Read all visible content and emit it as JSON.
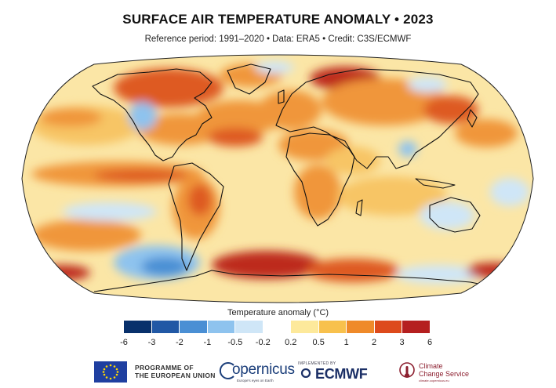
{
  "header": {
    "title": "SURFACE AIR TEMPERATURE ANOMALY • 2023",
    "subtitle": "Reference period: 1991–2020 • Data: ERA5 • Credit: C3S/ECMWF"
  },
  "legend": {
    "title": "Temperature anomaly (°C)",
    "ticks": [
      "-6",
      "-3",
      "-2",
      "-1",
      "-0.5",
      "-0.2",
      "0.2",
      "0.5",
      "1",
      "2",
      "3",
      "6"
    ],
    "colors": [
      "#08306b",
      "#2158a5",
      "#4a8fd4",
      "#8ec3ee",
      "#cfe6f7",
      "#ffffff",
      "#fde99b",
      "#f8c14d",
      "#ef8a2a",
      "#dd4a1c",
      "#b51f1f"
    ]
  },
  "map": {
    "projection": "Robinson",
    "colors": {
      "ocean_base": "#fbe6a6",
      "warm_light": "#f7c565",
      "warm": "#f0963a",
      "hot": "#de5a24",
      "very_hot": "#bd2c1e",
      "cool": "#cfe6f7",
      "cold": "#8ec3ee",
      "very_cold": "#4a8fd4",
      "coast": "#111111"
    }
  },
  "logos": {
    "eu_line1": "PROGRAMME OF",
    "eu_line2": "THE EUROPEAN UNION",
    "copernicus": "opernicus",
    "copernicus_sub": "Europe's eyes on Earth",
    "ecmwf_small": "IMPLEMENTED BY",
    "ecmwf": "ECMWF",
    "ccs_line1": "Climate",
    "ccs_line2": "Change Service",
    "ccs_sub": "climate.copernicus.eu"
  }
}
